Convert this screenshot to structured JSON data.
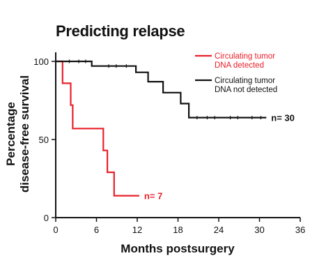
{
  "chart_data": {
    "type": "line",
    "title": "Predicting relapse",
    "xlabel": "Months postsurgery",
    "ylabel_lines": [
      "Percentage",
      "disease-free survival"
    ],
    "xlim": [
      0,
      36
    ],
    "ylim": [
      0,
      100
    ],
    "xticks": [
      0,
      6,
      12,
      18,
      24,
      30,
      36
    ],
    "yticks": [
      0,
      50,
      100
    ],
    "grid": false,
    "legend_position": "top-right",
    "series": [
      {
        "name": "Circulating tumor DNA detected",
        "legend_lines": [
          "Circulating tumor",
          "DNA detected"
        ],
        "color": "#e8202a",
        "step": true,
        "points": [
          [
            0,
            100
          ],
          [
            1,
            100
          ],
          [
            1,
            86
          ],
          [
            2.2,
            86
          ],
          [
            2.2,
            72
          ],
          [
            2.5,
            72
          ],
          [
            2.5,
            57
          ],
          [
            7,
            57
          ],
          [
            7,
            43
          ],
          [
            7.6,
            43
          ],
          [
            7.6,
            29
          ],
          [
            8.6,
            29
          ],
          [
            8.6,
            14
          ],
          [
            12.3,
            14
          ]
        ],
        "censored": [],
        "n_label": "n= 7"
      },
      {
        "name": "Circulating tumor DNA not detected",
        "legend_lines": [
          "Circulating tumor",
          "DNA not detected"
        ],
        "color": "#111111",
        "step": true,
        "points": [
          [
            0,
            100
          ],
          [
            5.3,
            100
          ],
          [
            5.3,
            97
          ],
          [
            11.8,
            97
          ],
          [
            11.8,
            93
          ],
          [
            13.6,
            93
          ],
          [
            13.6,
            87
          ],
          [
            15.8,
            87
          ],
          [
            15.8,
            80
          ],
          [
            18.4,
            80
          ],
          [
            18.4,
            73
          ],
          [
            19.6,
            73
          ],
          [
            19.6,
            64
          ],
          [
            31,
            64
          ]
        ],
        "censored": [
          [
            2,
            100
          ],
          [
            3.4,
            100
          ],
          [
            4.4,
            100
          ],
          [
            7.8,
            97
          ],
          [
            8.9,
            97
          ],
          [
            10.4,
            97
          ],
          [
            20.8,
            64
          ],
          [
            22.3,
            64
          ],
          [
            23.4,
            64
          ],
          [
            25.7,
            64
          ],
          [
            26.8,
            64
          ],
          [
            28.9,
            64
          ],
          [
            30.2,
            64
          ]
        ],
        "n_label": "n= 30"
      }
    ]
  }
}
